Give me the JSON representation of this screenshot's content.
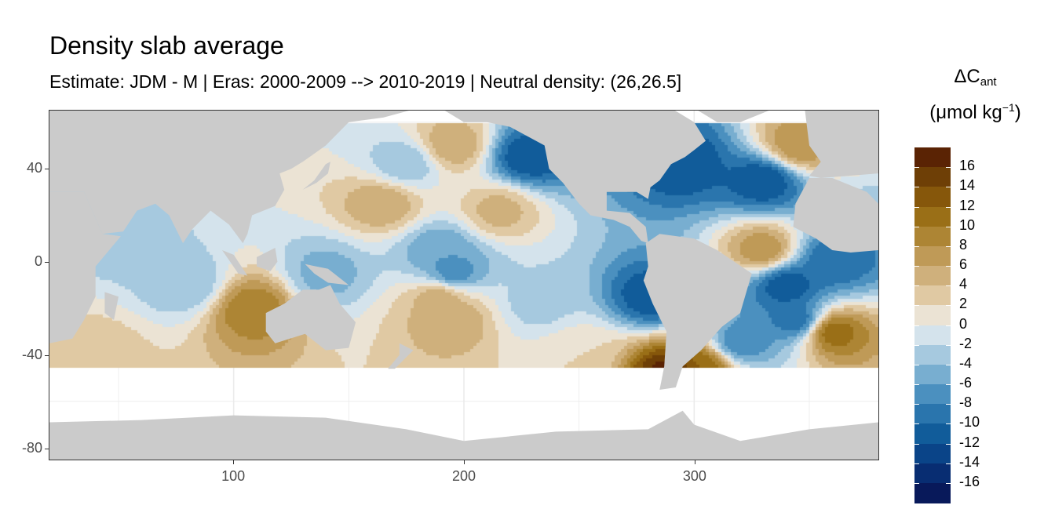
{
  "title": "Density slab average",
  "subtitle": "Estimate: JDM - M | Eras: 2000-2009 --> 2010-2019 | Neutral density: (26,26.5]",
  "legend": {
    "symbol": "ΔC",
    "symbol_sub": "ant",
    "unit_prefix": "(μmol kg",
    "unit_sup": "−1",
    "unit_suffix": ")"
  },
  "colors": {
    "land": "#cbcbcb",
    "missing": "#ffffff",
    "grid": "#ebebeb",
    "bins": [
      "#08195a",
      "#082d72",
      "#0a4488",
      "#115c9a",
      "#2a75ad",
      "#4b90bf",
      "#78aed0",
      "#a6c9df",
      "#d4e3ec",
      "#ebe3d4",
      "#e0c9a3",
      "#cfb07c",
      "#bf9a57",
      "#ad8534",
      "#9a6f17",
      "#86570b",
      "#6e3f06",
      "#5a2304"
    ]
  },
  "chart_data": {
    "type": "heatmap",
    "title": "Density slab average",
    "subtitle": "Estimate: JDM - M | Eras: 2000-2009 --> 2010-2019 | Neutral density: (26,26.5]",
    "xlabel": "",
    "ylabel": "",
    "xlim": [
      20,
      380
    ],
    "ylim": [
      -85,
      65
    ],
    "x_ticks": [
      100,
      200,
      300
    ],
    "y_ticks": [
      40,
      0,
      -40,
      -80
    ],
    "grid": true,
    "legend_position": "right",
    "legend_title": "ΔC_ant (μmol kg−1)",
    "color_scale": {
      "breaks": [
        -18,
        -16,
        -14,
        -12,
        -10,
        -8,
        -6,
        -4,
        -2,
        0,
        2,
        4,
        6,
        8,
        10,
        12,
        14,
        16,
        18
      ],
      "labels": [
        "16",
        "14",
        "12",
        "10",
        "8",
        "6",
        "4",
        "2",
        "0",
        "-2",
        "-4",
        "-6",
        "-8",
        "-10",
        "-12",
        "-14",
        "-16"
      ]
    },
    "field_features": [
      {
        "lon": 228,
        "lat": 45,
        "value": -12
      },
      {
        "lon": 195,
        "lat": 50,
        "value": 6
      },
      {
        "lon": 175,
        "lat": 42,
        "value": -4
      },
      {
        "lon": 165,
        "lat": 25,
        "value": 6
      },
      {
        "lon": 215,
        "lat": 22,
        "value": 5
      },
      {
        "lon": 190,
        "lat": 5,
        "value": -6
      },
      {
        "lon": 195,
        "lat": -5,
        "value": -8
      },
      {
        "lon": 190,
        "lat": -15,
        "value": 6
      },
      {
        "lon": 195,
        "lat": -25,
        "value": 6
      },
      {
        "lon": 232,
        "lat": -18,
        "value": -3
      },
      {
        "lon": 140,
        "lat": -5,
        "value": -5
      },
      {
        "lon": 80,
        "lat": -10,
        "value": -4
      },
      {
        "lon": 108,
        "lat": -20,
        "value": 10
      },
      {
        "lon": 50,
        "lat": 10,
        "value": -3
      },
      {
        "lon": 282,
        "lat": -15,
        "value": -12
      },
      {
        "lon": 295,
        "lat": 42,
        "value": -12
      },
      {
        "lon": 330,
        "lat": 35,
        "value": -12
      },
      {
        "lon": 345,
        "lat": 50,
        "value": 8
      },
      {
        "lon": 330,
        "lat": 5,
        "value": 8
      },
      {
        "lon": 340,
        "lat": -10,
        "value": -12
      },
      {
        "lon": 360,
        "lat": 0,
        "value": -10
      },
      {
        "lon": 345,
        "lat": -25,
        "value": -10
      },
      {
        "lon": 320,
        "lat": -35,
        "value": -8
      },
      {
        "lon": 303,
        "lat": -45,
        "value": 12
      },
      {
        "lon": 290,
        "lat": -48,
        "value": 18
      },
      {
        "lon": 360,
        "lat": -30,
        "value": 12
      },
      {
        "lon": 250,
        "lat": -40,
        "value": 2
      },
      {
        "lon": 40,
        "lat": -38,
        "value": 3
      }
    ]
  }
}
